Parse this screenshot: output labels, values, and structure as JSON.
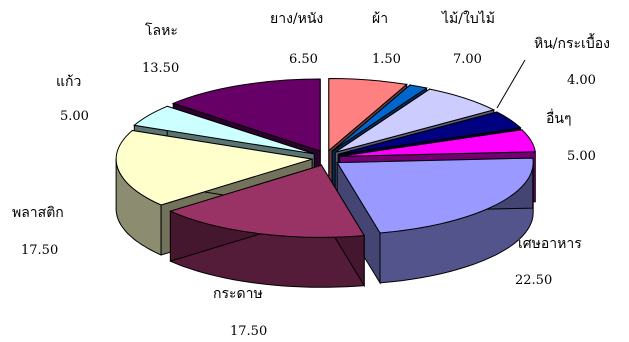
{
  "chart_data": {
    "type": "pie",
    "title": "",
    "categories": [
      "ยาง/หนัง",
      "ผ้า",
      "ไม้/ใบไม้",
      "หิน/กระเบื้อง",
      "อื่นๆ",
      "เศษอาหาร",
      "กระดาษ",
      "พลาสติก",
      "แก้ว",
      "โลหะ"
    ],
    "values": [
      6.5,
      1.5,
      7.0,
      4.0,
      5.0,
      22.5,
      17.5,
      17.5,
      5.0,
      13.5
    ],
    "value_labels": [
      "6.50",
      "1.50",
      "7.00",
      "4.00",
      "5.00",
      "22.50",
      "17.50",
      "17.50",
      "5.00",
      "13.50"
    ],
    "colors": [
      "#ff8080",
      "#0066cc",
      "#ccccff",
      "#000080",
      "#ff00ff",
      "#9999ff",
      "#993366",
      "#ffffcc",
      "#ccffff",
      "#660066"
    ],
    "exploded": true,
    "three_d": true,
    "legend": "none"
  }
}
